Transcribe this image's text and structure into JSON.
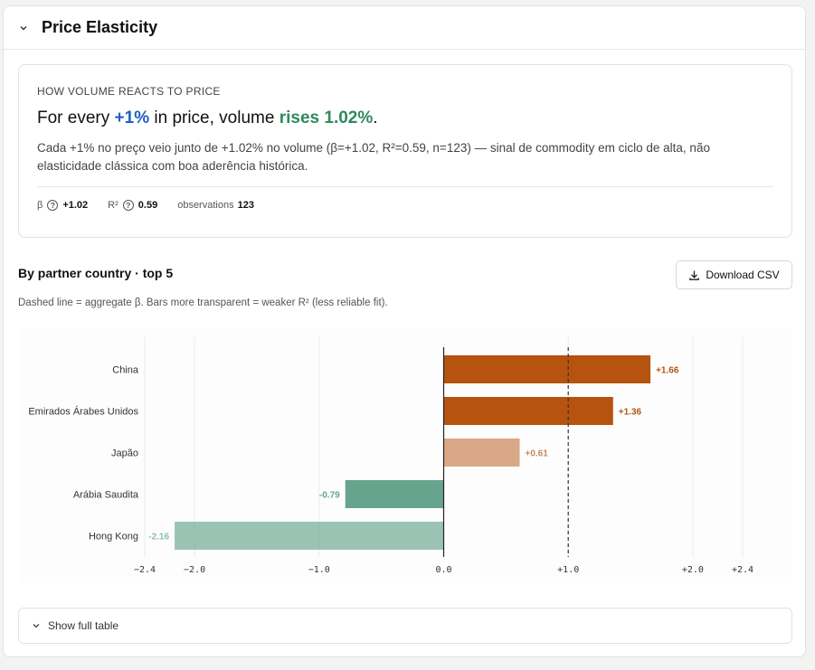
{
  "panel": {
    "title": "Price Elasticity"
  },
  "summary": {
    "eyebrow": "HOW VOLUME REACTS TO PRICE",
    "headline_prefix": "For every ",
    "headline_pct": "+1%",
    "headline_mid": " in price, volume ",
    "headline_result": "rises 1.02%",
    "headline_suffix": ".",
    "description": "Cada +1% no preço veio junto de +1.02% no volume (β=+1.02, R²=0.59, n=123) — sinal de commodity em ciclo de alta, não elasticidade clássica com boa aderência histórica.",
    "stats": {
      "beta_label": "β",
      "beta_value": "+1.02",
      "r2_label": "R²",
      "r2_value": "0.59",
      "obs_label": "observations",
      "obs_value": "123"
    }
  },
  "section": {
    "title": "By partner country · top 5",
    "download_label": "Download CSV",
    "caption": "Dashed line = aggregate β. Bars more transparent = weaker R² (less reliable fit)."
  },
  "table_toggle": {
    "label": "Show full table"
  },
  "colors": {
    "positive": "#b5530f",
    "negative": "#5f9f87",
    "blue": "#1f5fbf",
    "green": "#2e8a5c"
  },
  "chart_data": {
    "type": "bar",
    "orientation": "horizontal",
    "categories": [
      "China",
      "Emirados Árabes Unidos",
      "Japão",
      "Arábia Saudita",
      "Hong Kong"
    ],
    "values": [
      1.66,
      1.36,
      0.61,
      -0.79,
      -2.16
    ],
    "value_labels": [
      "+1.66",
      "+1.36",
      "+0.61",
      "-0.79",
      "-2.16"
    ],
    "opacity": [
      1,
      1,
      0.5,
      0.95,
      0.62
    ],
    "reference_line": 1.0,
    "xlim": [
      -2.4,
      2.4
    ],
    "ticks": [
      -2.4,
      -2.0,
      -1.0,
      0.0,
      1.0,
      2.0,
      2.4
    ],
    "tick_labels": [
      "−2.4",
      "−2.0",
      "−1.0",
      "0.0",
      "+1.0",
      "+2.0",
      "+2.4"
    ],
    "grid": true
  }
}
